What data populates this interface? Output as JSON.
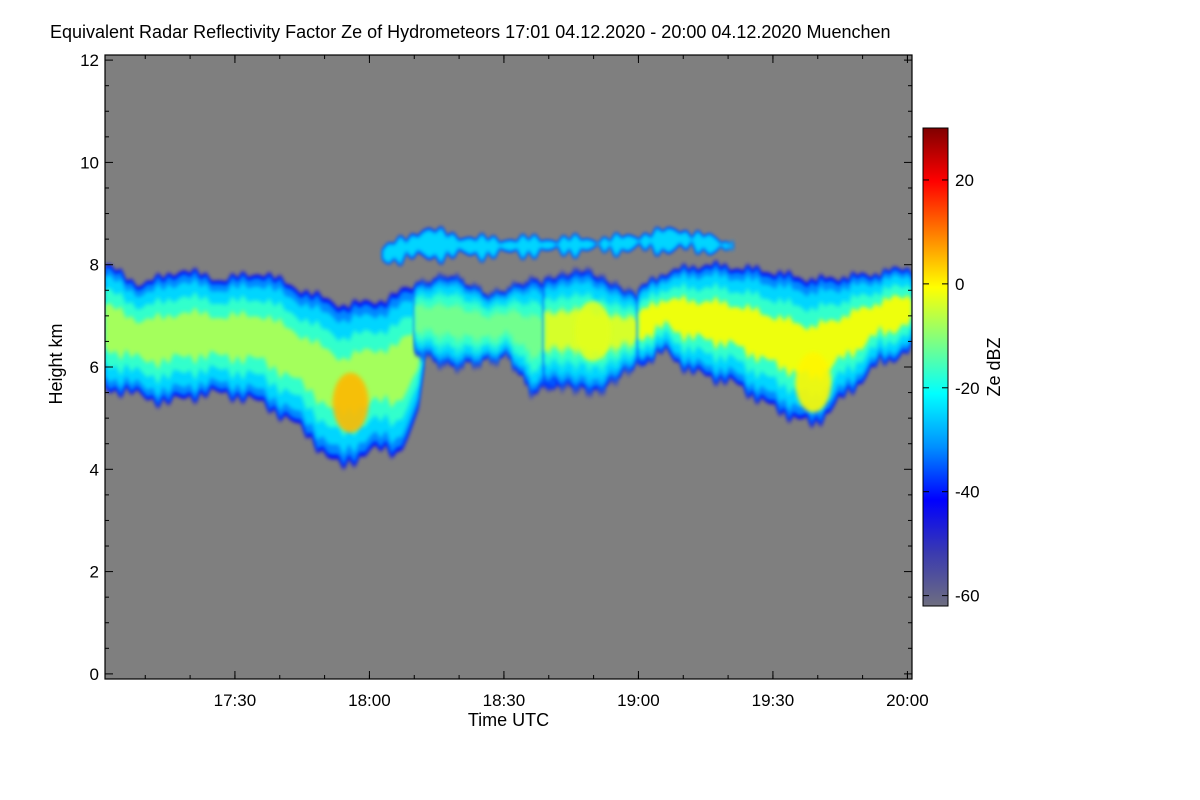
{
  "chart_data": {
    "type": "heatmap",
    "title": "Equivalent Radar Reflectivity Factor Ze of Hydrometeors   17:01 04.12.2020 - 20:00 04.12.2020 Muenchen",
    "xlabel": "Time UTC",
    "ylabel": "Height km",
    "xlim_hours": [
      17.017,
      20.017
    ],
    "ylim": [
      -0.1,
      12.1
    ],
    "x_ticks": [
      {
        "value": 17.5,
        "label": "17:30"
      },
      {
        "value": 18.0,
        "label": "18:00"
      },
      {
        "value": 18.5,
        "label": "18:30"
      },
      {
        "value": 19.0,
        "label": "19:00"
      },
      {
        "value": 19.5,
        "label": "19:30"
      },
      {
        "value": 20.0,
        "label": "20:00"
      }
    ],
    "y_ticks": [
      {
        "value": 0,
        "label": "0"
      },
      {
        "value": 2,
        "label": "2"
      },
      {
        "value": 4,
        "label": "4"
      },
      {
        "value": 6,
        "label": "6"
      },
      {
        "value": 8,
        "label": "8"
      },
      {
        "value": 10,
        "label": "10"
      },
      {
        "value": 12,
        "label": "12"
      }
    ],
    "background_color": "#7f7f7f",
    "colorbar": {
      "label": "Ze dBZ",
      "range": [
        -62,
        30
      ],
      "ticks": [
        {
          "value": 20,
          "label": "20"
        },
        {
          "value": 0,
          "label": "0"
        },
        {
          "value": -20,
          "label": "-20"
        },
        {
          "value": -40,
          "label": "-40"
        },
        {
          "value": -60,
          "label": "-60"
        }
      ],
      "colors": [
        "#6e6e80",
        "#3a3ab0",
        "#0000ff",
        "#0090ff",
        "#00ffff",
        "#80ff80",
        "#ffff00",
        "#ff8000",
        "#ff0000",
        "#800000"
      ]
    },
    "cloud_layers": [
      {
        "name": "main-cloud-1",
        "t0": 17.017,
        "t1": 18.2,
        "base": [
          [
            17.017,
            5.6
          ],
          [
            17.1,
            5.5
          ],
          [
            17.25,
            5.3
          ],
          [
            17.4,
            5.5
          ],
          [
            17.55,
            5.4
          ],
          [
            17.7,
            5.0
          ],
          [
            17.8,
            4.5
          ],
          [
            17.9,
            4.0
          ],
          [
            18.0,
            4.4
          ],
          [
            18.1,
            4.3
          ],
          [
            18.17,
            4.9
          ],
          [
            18.2,
            5.8
          ]
        ],
        "top": [
          [
            17.017,
            8.0
          ],
          [
            17.15,
            7.6
          ],
          [
            17.3,
            7.9
          ],
          [
            17.45,
            7.7
          ],
          [
            17.6,
            7.85
          ],
          [
            17.75,
            7.5
          ],
          [
            17.9,
            7.2
          ],
          [
            18.05,
            7.3
          ],
          [
            18.15,
            7.55
          ],
          [
            18.2,
            7.6
          ]
        ],
        "core_dbz": -8
      },
      {
        "name": "main-cloud-2",
        "t0": 18.17,
        "t1": 18.72,
        "base": [
          [
            18.17,
            6.3
          ],
          [
            18.3,
            6.0
          ],
          [
            18.42,
            6.1
          ],
          [
            18.52,
            6.2
          ],
          [
            18.6,
            5.5
          ],
          [
            18.72,
            5.7
          ]
        ],
        "top": [
          [
            18.17,
            7.6
          ],
          [
            18.3,
            7.8
          ],
          [
            18.45,
            7.4
          ],
          [
            18.6,
            7.7
          ],
          [
            18.72,
            7.6
          ]
        ],
        "core_dbz": -12
      },
      {
        "name": "main-cloud-3",
        "t0": 18.65,
        "t1": 19.05,
        "base": [
          [
            18.65,
            5.7
          ],
          [
            18.75,
            5.6
          ],
          [
            18.85,
            5.5
          ],
          [
            18.95,
            5.9
          ],
          [
            19.05,
            6.2
          ]
        ],
        "top": [
          [
            18.65,
            7.7
          ],
          [
            18.8,
            7.9
          ],
          [
            18.95,
            7.5
          ],
          [
            19.05,
            7.3
          ]
        ],
        "core_dbz": -4
      },
      {
        "name": "main-cloud-4",
        "t0": 19.0,
        "t1": 20.017,
        "base": [
          [
            19.0,
            6.1
          ],
          [
            19.1,
            6.3
          ],
          [
            19.2,
            5.9
          ],
          [
            19.35,
            5.7
          ],
          [
            19.5,
            5.2
          ],
          [
            19.65,
            4.85
          ],
          [
            19.8,
            5.6
          ],
          [
            19.9,
            6.1
          ],
          [
            20.017,
            6.3
          ]
        ],
        "top": [
          [
            19.0,
            7.5
          ],
          [
            19.1,
            7.85
          ],
          [
            19.25,
            8.0
          ],
          [
            19.45,
            7.9
          ],
          [
            19.65,
            7.7
          ],
          [
            19.85,
            7.8
          ],
          [
            20.017,
            7.95
          ]
        ],
        "core_dbz": -2
      },
      {
        "name": "upper-fragments",
        "t0": 18.05,
        "t1": 19.35,
        "base": [
          [
            18.05,
            8.1
          ],
          [
            18.4,
            8.2
          ],
          [
            18.9,
            8.3
          ],
          [
            19.35,
            8.3
          ]
        ],
        "top": [
          [
            18.05,
            8.3
          ],
          [
            18.2,
            8.7
          ],
          [
            18.4,
            8.5
          ],
          [
            18.9,
            8.5
          ],
          [
            19.15,
            8.7
          ],
          [
            19.35,
            8.4
          ]
        ],
        "core_dbz": -24
      }
    ],
    "intense_cores": [
      {
        "time": 17.93,
        "height": 5.3,
        "dbz": 5
      },
      {
        "time": 18.83,
        "height": 6.7,
        "dbz": -3
      },
      {
        "time": 19.65,
        "height": 5.7,
        "dbz": 0
      }
    ]
  }
}
